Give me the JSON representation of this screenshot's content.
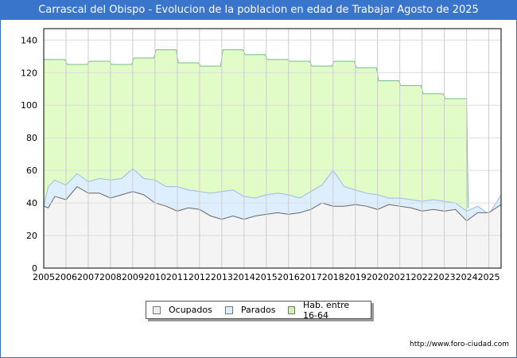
{
  "title": "Carrascal del Obispo - Evolucion de la poblacion en edad de Trabajar Agosto de 2025",
  "url": "http://www.foro-ciudad.com",
  "colors": {
    "ocupados_fill": "#f4f4f4",
    "ocupados_line": "#666666",
    "parados_fill": "#ddeeff",
    "parados_line": "#99bbee",
    "hab_fill": "#e2fcc8",
    "hab_line": "#77bb88"
  },
  "chart_data": {
    "type": "area",
    "title": "Carrascal del Obispo - Evolucion de la poblacion en edad de Trabajar Agosto de 2025",
    "xlim": [
      2005,
      2025.55
    ],
    "ylim": [
      0,
      147
    ],
    "yticks": [
      0,
      20,
      40,
      60,
      80,
      100,
      120,
      140
    ],
    "xticks": [
      2005,
      2006,
      2007,
      2008,
      2009,
      2010,
      2011,
      2012,
      2013,
      2014,
      2015,
      2016,
      2017,
      2018,
      2019,
      2020,
      2021,
      2022,
      2023,
      2024,
      2025
    ],
    "grid": true,
    "legend": {
      "placement": "bottom-center",
      "entries": [
        "Ocupados",
        "Parados",
        "Hab. entre 16-64"
      ]
    },
    "series": [
      {
        "name": "Hab. entre 16-64",
        "x": [
          2005,
          2006,
          2007,
          2008,
          2009,
          2010,
          2011,
          2012,
          2013,
          2014,
          2015,
          2016,
          2017,
          2018,
          2019,
          2020,
          2021,
          2022,
          2023
        ],
        "values": [
          128,
          125,
          127,
          125,
          129,
          134,
          126,
          124,
          134,
          131,
          128,
          127,
          124,
          127,
          123,
          115,
          112,
          107,
          104
        ]
      },
      {
        "name": "Parados",
        "note": "stacked total (Ocupados + Parados)",
        "x": [
          2005,
          2005.2,
          2005.5,
          2006,
          2006.5,
          2007,
          2007.5,
          2008,
          2008.5,
          2009,
          2009.5,
          2010,
          2010.5,
          2011,
          2011.5,
          2012,
          2012.5,
          2013,
          2013.5,
          2014,
          2014.5,
          2015,
          2015.5,
          2016,
          2016.5,
          2017,
          2017.5,
          2018,
          2018.5,
          2019,
          2019.5,
          2020,
          2020.5,
          2021,
          2021.5,
          2022,
          2022.5,
          2023,
          2023.5,
          2024,
          2024.5,
          2025,
          2025.55
        ],
        "values": [
          38,
          50,
          54,
          51,
          58,
          53,
          55,
          54,
          55,
          61,
          55,
          54,
          50,
          50,
          48,
          47,
          46,
          47,
          48,
          44,
          43,
          45,
          46,
          45,
          43,
          47,
          51,
          60,
          50,
          48,
          46,
          45,
          43,
          43,
          42,
          41,
          42,
          41,
          40,
          35,
          38,
          33,
          45
        ]
      },
      {
        "name": "Ocupados",
        "x": [
          2005,
          2005.2,
          2005.5,
          2006,
          2006.5,
          2007,
          2007.5,
          2008,
          2008.5,
          2009,
          2009.5,
          2010,
          2010.5,
          2011,
          2011.5,
          2012,
          2012.5,
          2013,
          2013.5,
          2014,
          2014.5,
          2015,
          2015.5,
          2016,
          2016.5,
          2017,
          2017.5,
          2018,
          2018.5,
          2019,
          2019.5,
          2020,
          2020.5,
          2021,
          2021.5,
          2022,
          2022.5,
          2023,
          2023.5,
          2024,
          2024.5,
          2025,
          2025.55
        ],
        "values": [
          38,
          37,
          44,
          42,
          50,
          46,
          46,
          43,
          45,
          47,
          45,
          40,
          38,
          35,
          37,
          36,
          32,
          30,
          32,
          30,
          32,
          33,
          34,
          33,
          34,
          36,
          40,
          38,
          38,
          39,
          38,
          36,
          39,
          38,
          37,
          35,
          36,
          35,
          36,
          29,
          34,
          34,
          39
        ]
      }
    ]
  }
}
